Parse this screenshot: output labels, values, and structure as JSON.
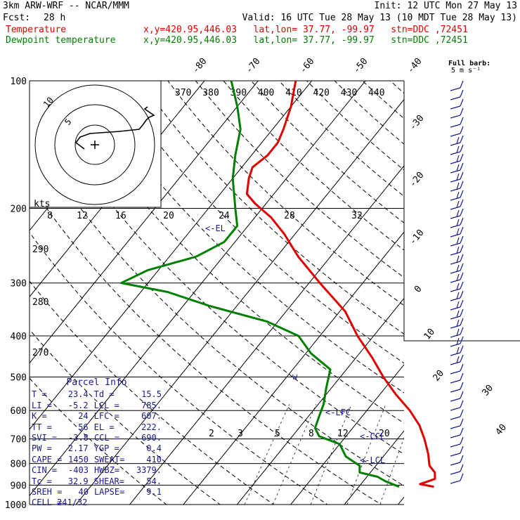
{
  "header": {
    "model": "3km ARW-WRF -- NCAR/MMM",
    "init": "Init: 12 UTC Mon 27 May 13",
    "fcst_label": "Fcst:",
    "fcst_value": "28 h",
    "valid": "Valid: 16 UTC Tue 28 May 13 (10 MDT Tue 28 May 13)",
    "temp_label": "Temperature",
    "temp_loc": "x,y=420.95,446.03   lat,lon= 37.77, -99.97   stn=DDC ,72451",
    "dew_label": "Dewpoint temperature",
    "dew_loc": "x,y=420.95,446.03   lat,lon= 37.77, -99.97   stn=DDC ,72451"
  },
  "colors": {
    "temperature": "#e00000",
    "dewpoint": "#008000",
    "info": "#1a1a8c",
    "barb": "#1a1a8c"
  },
  "chart_data": {
    "type": "line",
    "title": "",
    "y_axis": "pressure (hPa), log scale",
    "pressure_ticks": [
      100,
      200,
      300,
      400,
      500,
      600,
      700,
      800,
      900,
      1000
    ],
    "isotherm_labels": [
      -80,
      -70,
      -60,
      -50,
      -40,
      -30,
      -20,
      -10,
      0,
      10,
      20,
      30,
      40
    ],
    "theta_labels": [
      370,
      380,
      390,
      400,
      410,
      420,
      430,
      440
    ],
    "theta_side_labels": [
      290,
      280,
      270
    ],
    "mixing_ratio_labels": [
      2,
      3,
      5,
      8,
      12,
      20
    ],
    "hodo_speed_labels": [
      8,
      12,
      16,
      20,
      24,
      28,
      32
    ],
    "hodo_units": "kts",
    "hodo_ring_labels": [
      "5",
      "10"
    ],
    "barb_legend": [
      "Full barb:",
      "5 m s⁻¹"
    ],
    "level_markers": [
      "<-EL",
      "<-LFC",
      "<-CCL",
      "<-LCL"
    ],
    "series": [
      {
        "name": "Temperature",
        "points": [
          [
            908,
            24
          ],
          [
            895,
            21
          ],
          [
            870,
            23
          ],
          [
            840,
            22
          ],
          [
            810,
            20
          ],
          [
            760,
            18
          ],
          [
            700,
            15
          ],
          [
            650,
            12
          ],
          [
            600,
            8
          ],
          [
            550,
            3
          ],
          [
            500,
            -2
          ],
          [
            450,
            -7
          ],
          [
            400,
            -13
          ],
          [
            350,
            -19
          ],
          [
            300,
            -28
          ],
          [
            260,
            -36
          ],
          [
            230,
            -42
          ],
          [
            210,
            -47
          ],
          [
            195,
            -52
          ],
          [
            185,
            -55
          ],
          [
            170,
            -57
          ],
          [
            160,
            -58
          ],
          [
            150,
            -57
          ],
          [
            140,
            -57
          ],
          [
            130,
            -58
          ],
          [
            115,
            -60
          ],
          [
            100,
            -63
          ]
        ]
      },
      {
        "name": "Dewpoint temperature",
        "points": [
          [
            908,
            17.5
          ],
          [
            880,
            14
          ],
          [
            860,
            12
          ],
          [
            840,
            8
          ],
          [
            810,
            7
          ],
          [
            770,
            3
          ],
          [
            720,
            0
          ],
          [
            690,
            -5
          ],
          [
            660,
            -7
          ],
          [
            620,
            -8
          ],
          [
            580,
            -9
          ],
          [
            530,
            -11
          ],
          [
            480,
            -13
          ],
          [
            440,
            -19
          ],
          [
            400,
            -24
          ],
          [
            370,
            -32
          ],
          [
            340,
            -45
          ],
          [
            315,
            -55
          ],
          [
            300,
            -65
          ],
          [
            280,
            -62
          ],
          [
            260,
            -55
          ],
          [
            240,
            -52
          ],
          [
            220,
            -52
          ],
          [
            200,
            -55
          ],
          [
            170,
            -60
          ],
          [
            150,
            -63
          ],
          [
            130,
            -66
          ],
          [
            115,
            -70
          ],
          [
            100,
            -75
          ]
        ]
      }
    ]
  },
  "parcel": {
    "title": "Parcel Info",
    "rows": [
      [
        "T =",
        "23.4",
        "Td =",
        "15.5"
      ],
      [
        "LI =",
        "-5.2",
        "LCL =",
        "785."
      ],
      [
        "K =",
        "24",
        "LFC =",
        "607."
      ],
      [
        "TT =",
        "56",
        "EL =",
        "222."
      ],
      [
        "SVI =",
        "-3.8",
        "CCL =",
        "690."
      ],
      [
        "PW =",
        "2.17",
        "YGP =",
        "0.4"
      ],
      [
        "CAPE =",
        "1450",
        "SWEAT=",
        "410"
      ],
      [
        "CIN =",
        "-403",
        "HWBZ=",
        "3379."
      ],
      [
        "Tc =",
        "32.9",
        "SHEAR=",
        "54."
      ],
      [
        "SREH =",
        "40",
        "LAPSE=",
        "9.1"
      ],
      [
        "CELL =",
        "241/32",
        "",
        ""
      ]
    ]
  }
}
